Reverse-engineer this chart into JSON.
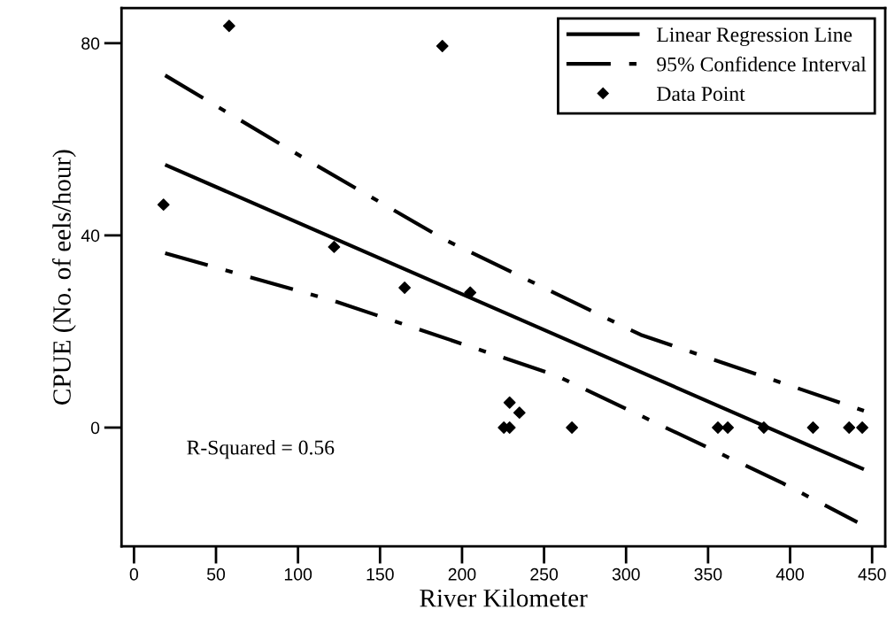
{
  "chart_data": {
    "type": "scatter",
    "xlabel": "River Kilometer",
    "ylabel": "CPUE (No. of eels/hour)",
    "xlim": [
      -7.6,
      458
    ],
    "ylim": [
      -24.7,
      87.3
    ],
    "xticks": [
      0,
      50,
      100,
      150,
      200,
      250,
      300,
      350,
      400,
      450
    ],
    "yticks": [
      0,
      40,
      80
    ],
    "grid": false,
    "legend": "top right",
    "annotations": [
      "R-Squared = 0.56"
    ],
    "series": [
      {
        "name": "Linear Regression Line",
        "type": "line",
        "color": "#000000",
        "line_style": "solid",
        "marker": "none",
        "x": [
          19,
          204.5,
          445
        ],
        "values": [
          54.7,
          27.1,
          -8.7
        ]
      },
      {
        "name": "95% Confidence Interval",
        "type": "line",
        "color": "#000000",
        "line_style": "dashed",
        "marker": "none",
        "x": [
          19,
          105,
          189,
          309,
          445
        ],
        "values": [
          73.3,
          55.8,
          39.2,
          19.3,
          3.5
        ]
      },
      {
        "type": "line",
        "color": "#000000",
        "line_style": "dashed",
        "marker": "none",
        "x": [
          19,
          122.5,
          257,
          395.6,
          441
        ],
        "values": [
          36.3,
          26.3,
          10.9,
          -11.6,
          -19.7
        ]
      },
      {
        "name": "Data Point",
        "color": "#000000",
        "marker": "diamond",
        "x": [
          18,
          58,
          188,
          122,
          165,
          205,
          229,
          235,
          225.5,
          229,
          267,
          356,
          362,
          384,
          414,
          436,
          444
        ],
        "values": [
          46.4,
          83.6,
          79.4,
          37.6,
          29.1,
          28.1,
          5.2,
          3.1,
          0,
          0,
          0,
          0,
          0,
          0,
          0,
          0,
          0
        ]
      }
    ]
  }
}
